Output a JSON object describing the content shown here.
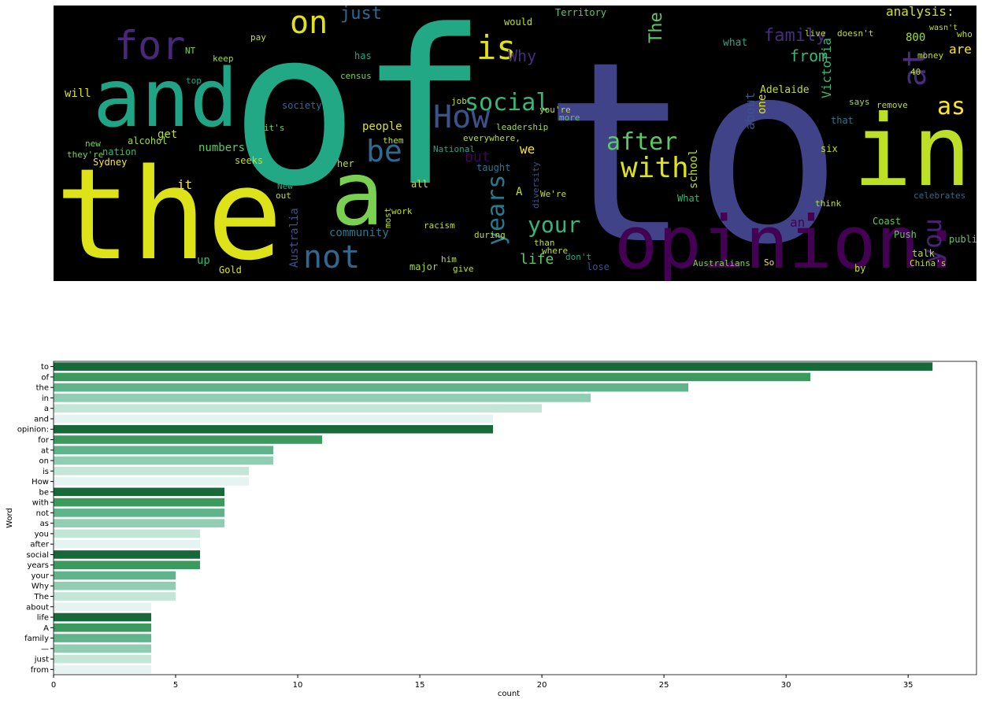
{
  "chart_data": [
    {
      "type": "wordcloud",
      "background": "#000000",
      "words": [
        "of",
        "to",
        "the",
        "and",
        "a",
        "in",
        "opinion:",
        "for",
        "on",
        "is",
        "How",
        "at",
        "social",
        "be",
        "with",
        "after",
        "not",
        "years",
        "your",
        "you",
        "as",
        "just",
        "family",
        "from",
        "The",
        "Why",
        "life",
        "community",
        "people",
        "school",
        "Victoria",
        "about",
        "analysis:",
        "are",
        "but",
        "we",
        "it",
        "get",
        "numbers",
        "will",
        "society",
        "Australia",
        "Adelaide",
        "what",
        "alcohol",
        "nation",
        "Sydney",
        "Gold",
        "up",
        "Coast",
        "Push",
        "public",
        "talk",
        "lose",
        "an",
        "major",
        "give",
        "him",
        "all",
        "work",
        "out",
        "New",
        "What",
        "celebrates",
        "leadership",
        "Territory",
        "would",
        "has",
        "keep",
        "top",
        "pay",
        "NT",
        "census",
        "money",
        "live",
        "doesn't",
        "800",
        "wasn't",
        "who",
        "six",
        "says",
        "that",
        "think",
        "by",
        "Australians",
        "So",
        "China's",
        "seeks",
        "her",
        "taught",
        "during",
        "than",
        "where",
        "don't",
        "more",
        "everywhere,",
        "National",
        "job",
        "you're",
        "them",
        "it's",
        "racism",
        "We're",
        "A",
        "one",
        "they're",
        "new",
        "remove",
        "40",
        "diversity",
        "most"
      ]
    },
    {
      "type": "barh",
      "xlabel": "count",
      "ylabel": "Word",
      "categories": [
        "to",
        "of",
        "the",
        "in",
        "a",
        "and",
        "opinion:",
        "for",
        "at",
        "on",
        "is",
        "How",
        "be",
        "with",
        "not",
        "as",
        "you",
        "after",
        "social",
        "years",
        "your",
        "Why",
        "The",
        "about",
        "life",
        "A",
        "family",
        "—",
        "just",
        "from"
      ],
      "values": [
        36,
        31,
        26,
        22,
        20,
        18,
        18,
        11,
        9,
        9,
        8,
        8,
        7,
        7,
        7,
        7,
        6,
        6,
        6,
        6,
        5,
        5,
        5,
        4,
        4,
        4,
        4,
        4,
        4,
        4
      ],
      "palette": [
        "#17693a",
        "#3d9a5f",
        "#5fb48c",
        "#91cdb2",
        "#c3e6d8",
        "#e6f4f1"
      ],
      "xlim": [
        0,
        37.8
      ],
      "xticks": [
        0,
        5,
        10,
        15,
        20,
        25,
        30,
        35
      ]
    }
  ]
}
